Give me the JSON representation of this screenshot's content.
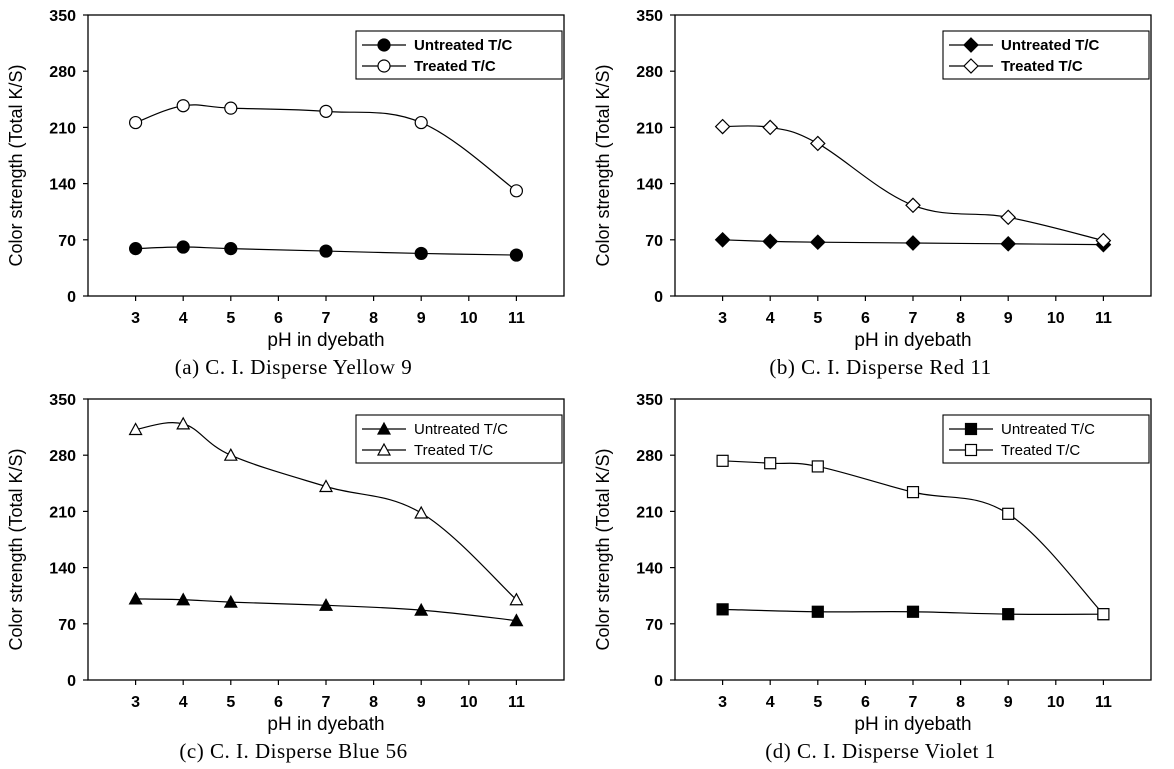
{
  "chart_data": [
    {
      "type": "line",
      "panel_id": "a",
      "caption": "(a) C. I. Disperse Yellow 9",
      "xlabel": "pH in dyebath",
      "ylabel": "Color strength (Total K/S)",
      "xlim": [
        2,
        12
      ],
      "ylim": [
        0,
        350
      ],
      "x_ticks": [
        3,
        4,
        5,
        6,
        7,
        8,
        9,
        10,
        11
      ],
      "y_ticks": [
        0,
        70,
        140,
        210,
        280,
        350
      ],
      "legend_position": "top-right",
      "legend_bold": true,
      "series": [
        {
          "name": "Untreated T/C",
          "marker": "circle",
          "filled": true,
          "x": [
            3,
            4,
            5,
            7,
            9,
            11
          ],
          "y": [
            59,
            61,
            59,
            56,
            53,
            51
          ]
        },
        {
          "name": "Treated T/C",
          "marker": "circle",
          "filled": false,
          "x": [
            3,
            4,
            5,
            7,
            9,
            11
          ],
          "y": [
            216,
            237,
            234,
            230,
            216,
            131
          ]
        }
      ]
    },
    {
      "type": "line",
      "panel_id": "b",
      "caption": "(b) C. I. Disperse Red 11",
      "xlabel": "pH in dyebath",
      "ylabel": "Color strength (Total K/S)",
      "xlim": [
        2,
        12
      ],
      "ylim": [
        0,
        350
      ],
      "x_ticks": [
        3,
        4,
        5,
        6,
        7,
        8,
        9,
        10,
        11
      ],
      "y_ticks": [
        0,
        70,
        140,
        210,
        280,
        350
      ],
      "legend_position": "top-right",
      "legend_bold": true,
      "series": [
        {
          "name": "Untreated T/C",
          "marker": "diamond",
          "filled": true,
          "x": [
            3,
            4,
            5,
            7,
            9,
            11
          ],
          "y": [
            70,
            68,
            67,
            66,
            65,
            64
          ]
        },
        {
          "name": "Treated T/C",
          "marker": "diamond",
          "filled": false,
          "x": [
            3,
            4,
            5,
            7,
            9,
            11
          ],
          "y": [
            211,
            210,
            190,
            113,
            98,
            69
          ]
        }
      ]
    },
    {
      "type": "line",
      "panel_id": "c",
      "caption": "(c) C. I. Disperse Blue 56",
      "xlabel": "pH in dyebath",
      "ylabel": "Color strength (Total K/S)",
      "xlim": [
        2,
        12
      ],
      "ylim": [
        0,
        350
      ],
      "x_ticks": [
        3,
        4,
        5,
        6,
        7,
        8,
        9,
        10,
        11
      ],
      "y_ticks": [
        0,
        70,
        140,
        210,
        280,
        350
      ],
      "legend_position": "top-right",
      "legend_bold": false,
      "series": [
        {
          "name": "Untreated T/C",
          "marker": "triangle",
          "filled": true,
          "x": [
            3,
            4,
            5,
            7,
            9,
            11
          ],
          "y": [
            101,
            100,
            97,
            93,
            87,
            74
          ]
        },
        {
          "name": "Treated T/C",
          "marker": "triangle",
          "filled": false,
          "x": [
            3,
            4,
            5,
            7,
            9,
            11
          ],
          "y": [
            312,
            319,
            280,
            241,
            208,
            100
          ]
        }
      ]
    },
    {
      "type": "line",
      "panel_id": "d",
      "caption": "(d) C. I. Disperse Violet 1",
      "xlabel": "pH in dyebath",
      "ylabel": "Color strength (Total K/S)",
      "xlim": [
        2,
        12
      ],
      "ylim": [
        0,
        350
      ],
      "x_ticks": [
        3,
        4,
        5,
        6,
        7,
        8,
        9,
        10,
        11
      ],
      "y_ticks": [
        0,
        70,
        140,
        210,
        280,
        350
      ],
      "legend_position": "top-right",
      "legend_bold": false,
      "series": [
        {
          "name": "Untreated T/C",
          "marker": "square",
          "filled": true,
          "x": [
            3,
            5,
            7,
            9,
            11
          ],
          "y": [
            88,
            85,
            85,
            82,
            82
          ]
        },
        {
          "name": "Treated T/C",
          "marker": "square",
          "filled": false,
          "x": [
            3,
            4,
            5,
            7,
            9,
            11
          ],
          "y": [
            273,
            270,
            266,
            234,
            207,
            82
          ]
        }
      ]
    }
  ]
}
